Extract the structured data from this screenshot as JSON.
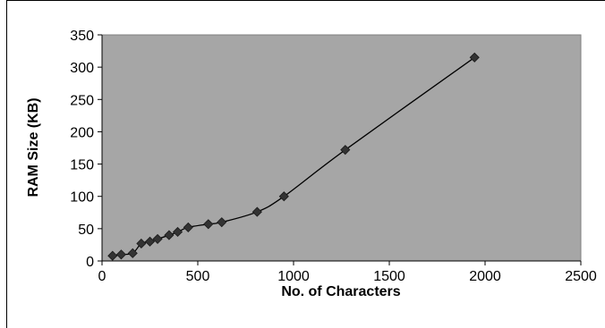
{
  "chart_data": {
    "type": "line",
    "xlabel": "No. of Characters",
    "ylabel": "RAM Size (KB)",
    "xlim": [
      0,
      2500
    ],
    "ylim": [
      0,
      350
    ],
    "x_ticks": [
      0,
      500,
      1000,
      1500,
      2000,
      2500
    ],
    "y_ticks": [
      0,
      50,
      100,
      150,
      200,
      250,
      300,
      350
    ],
    "grid": false,
    "legend": "none",
    "colors": {
      "plot_background": "#a6a6a6",
      "line": "#000000",
      "marker": "#333333"
    },
    "marker": "diamond",
    "series": [
      {
        "x": [
          55,
          100,
          160,
          205,
          250,
          290,
          350,
          395,
          450,
          555,
          625,
          810,
          950,
          1270,
          1945
        ],
        "y": [
          8,
          10,
          12,
          27,
          30,
          34,
          40,
          45,
          52,
          57,
          60,
          76,
          100,
          172,
          315
        ]
      }
    ]
  }
}
